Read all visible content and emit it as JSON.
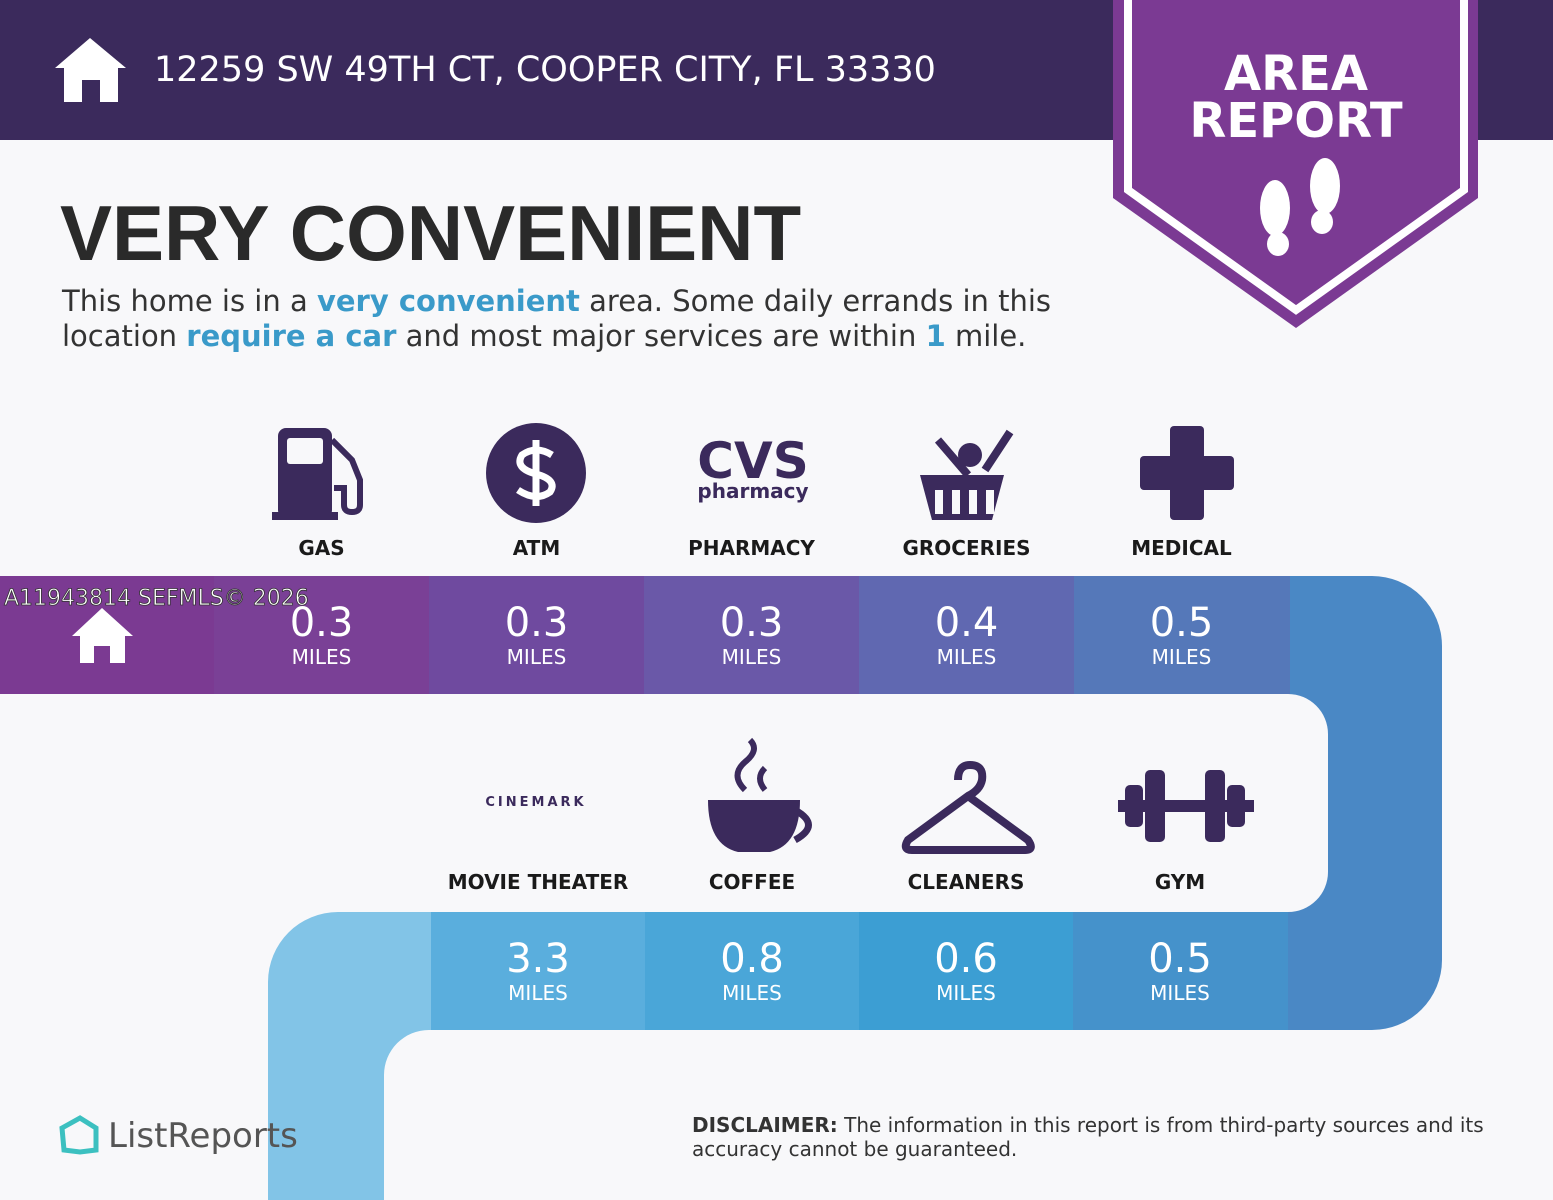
{
  "header": {
    "address": "12259 SW 49TH CT, COOPER CITY, FL 33330",
    "badge": [
      "AREA",
      "REPORT"
    ]
  },
  "headline": "VERY CONVENIENT",
  "description": [
    {
      "text": "This home is in a ",
      "emphasis": false
    },
    {
      "text": "very convenient",
      "emphasis": true
    },
    {
      "text": " area. Some daily errands in this location ",
      "emphasis": false
    },
    {
      "text": "require a car",
      "emphasis": true
    },
    {
      "text": " and most major services are within ",
      "emphasis": false
    },
    {
      "text": "1",
      "emphasis": true
    },
    {
      "text": " mile.",
      "emphasis": false
    }
  ],
  "watermark": "A11943814  SEFMLS© 2026",
  "home_color": "#7b3a92",
  "row1": [
    {
      "label": "GAS",
      "distance": "0.3",
      "unit": "MILES",
      "color": "#7a4096"
    },
    {
      "label": "ATM",
      "distance": "0.3",
      "unit": "MILES",
      "color": "#6f4a9f"
    },
    {
      "label": "PHARMACY",
      "brand": [
        "CVS",
        "pharmacy"
      ],
      "distance": "0.3",
      "unit": "MILES",
      "color": "#6a58a8"
    },
    {
      "label": "GROCERIES",
      "distance": "0.4",
      "unit": "MILES",
      "color": "#6068b1"
    },
    {
      "label": "MEDICAL",
      "distance": "0.5",
      "unit": "MILES",
      "color": "#5578b9"
    }
  ],
  "row2": [
    {
      "label": "MOVIE THEATER",
      "brand": [
        "CINEMARK"
      ],
      "distance": "3.3",
      "unit": "MILES",
      "color": "#5aaedd"
    },
    {
      "label": "COFFEE",
      "distance": "0.8",
      "unit": "MILES",
      "color": "#4aa6d8"
    },
    {
      "label": "CLEANERS",
      "distance": "0.6",
      "unit": "MILES",
      "color": "#3c9ed3"
    },
    {
      "label": "GYM",
      "distance": "0.5",
      "unit": "MILES",
      "color": "#4592cb"
    }
  ],
  "logo": "ListReports",
  "disclaimer": {
    "label": "DISCLAIMER:",
    "text": " The information in this report is from third-party sources and its accuracy cannot be guaranteed."
  }
}
